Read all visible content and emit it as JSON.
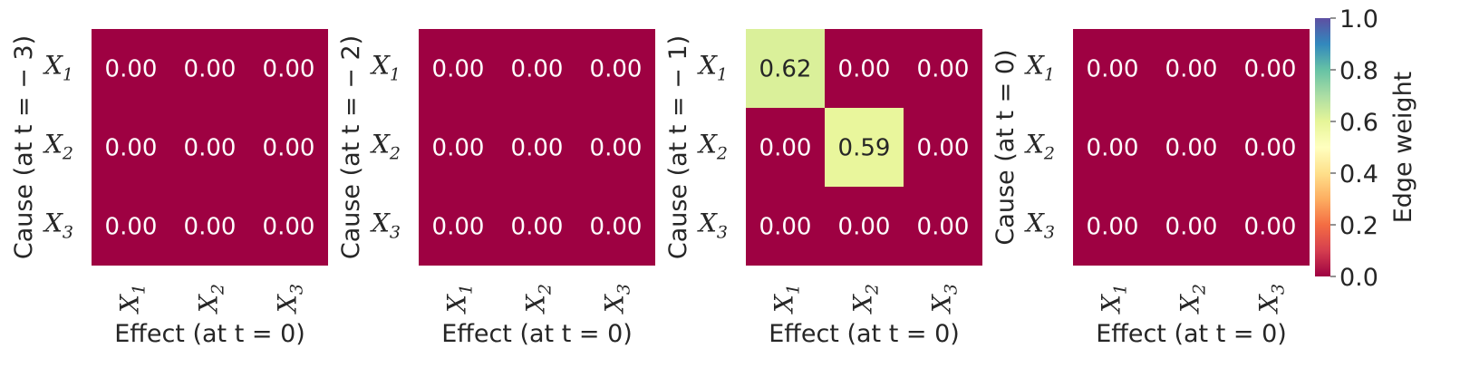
{
  "chart_data": [
    {
      "type": "heatmap",
      "ylabel": "Cause (at t = − 3)",
      "xlabel": "Effect (at t = 0)",
      "row_labels": [
        "X1",
        "X2",
        "X3"
      ],
      "col_labels": [
        "X1",
        "X2",
        "X3"
      ],
      "values": [
        [
          0.0,
          0.0,
          0.0
        ],
        [
          0.0,
          0.0,
          0.0
        ],
        [
          0.0,
          0.0,
          0.0
        ]
      ]
    },
    {
      "type": "heatmap",
      "ylabel": "Cause (at t = − 2)",
      "xlabel": "Effect (at t = 0)",
      "row_labels": [
        "X1",
        "X2",
        "X3"
      ],
      "col_labels": [
        "X1",
        "X2",
        "X3"
      ],
      "values": [
        [
          0.0,
          0.0,
          0.0
        ],
        [
          0.0,
          0.0,
          0.0
        ],
        [
          0.0,
          0.0,
          0.0
        ]
      ]
    },
    {
      "type": "heatmap",
      "ylabel": "Cause (at t = − 1)",
      "xlabel": "Effect (at t = 0)",
      "row_labels": [
        "X1",
        "X2",
        "X3"
      ],
      "col_labels": [
        "X1",
        "X2",
        "X3"
      ],
      "values": [
        [
          0.62,
          0.0,
          0.0
        ],
        [
          0.0,
          0.59,
          0.0
        ],
        [
          0.0,
          0.0,
          0.0
        ]
      ]
    },
    {
      "type": "heatmap",
      "ylabel": "Cause (at t = 0)",
      "xlabel": "Effect (at t = 0)",
      "row_labels": [
        "X1",
        "X2",
        "X3"
      ],
      "col_labels": [
        "X1",
        "X2",
        "X3"
      ],
      "values": [
        [
          0.0,
          0.0,
          0.0
        ],
        [
          0.0,
          0.0,
          0.0
        ],
        [
          0.0,
          0.0,
          0.0
        ]
      ]
    }
  ],
  "colorbar": {
    "label": "Edge weight",
    "range": [
      0.0,
      1.0
    ],
    "ticks": [
      "0.0",
      "0.2",
      "0.4",
      "0.6",
      "0.8",
      "1.0"
    ],
    "colormap": "Spectral",
    "colors": [
      "#9e0142",
      "#d53e4f",
      "#f46d43",
      "#fdae61",
      "#fee08b",
      "#ffffbf",
      "#e6f598",
      "#abdda4",
      "#66c2a5",
      "#3288bd",
      "#5e4fa2"
    ]
  }
}
